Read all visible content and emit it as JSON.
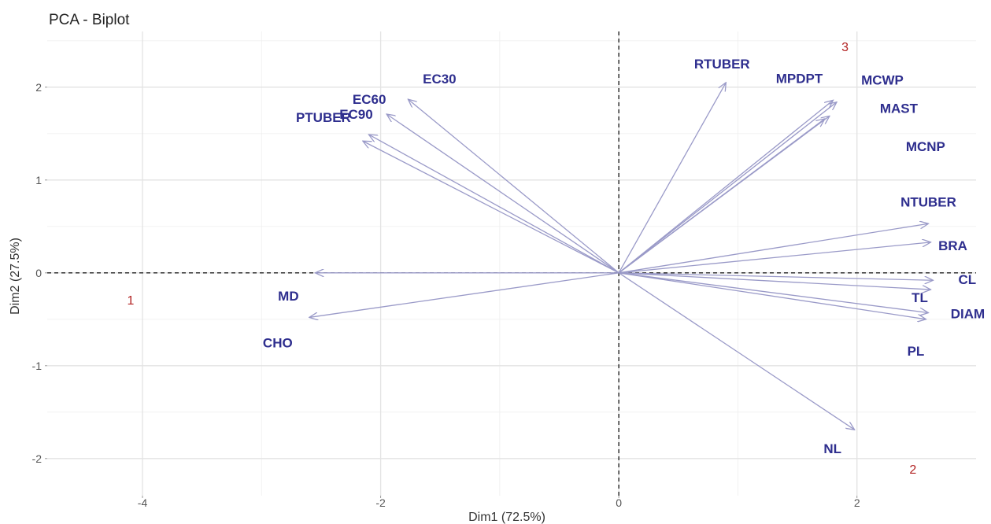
{
  "chart_data": {
    "type": "scatter",
    "subtype": "pca-biplot",
    "title": "PCA - Biplot",
    "xlabel": "Dim1 (72.5%)",
    "ylabel": "Dim2 (27.5%)",
    "xlim": [
      -4.8,
      3.0
    ],
    "ylim": [
      -2.4,
      2.6
    ],
    "x_ticks": [
      -4,
      -2,
      0,
      2
    ],
    "y_ticks": [
      -2,
      -1,
      0,
      1,
      2
    ],
    "grid": true,
    "colors": {
      "variables": "#2e2e8e",
      "arrows": "#9a9ac8",
      "individuals": "#b22222",
      "zero_line": "#222222"
    },
    "variables": [
      {
        "name": "EC30",
        "x": -1.77,
        "y": 1.87
      },
      {
        "name": "EC60",
        "x": -1.95,
        "y": 1.71
      },
      {
        "name": "EC90",
        "x": -2.1,
        "y": 1.49
      },
      {
        "name": "PTUBER",
        "x": -2.15,
        "y": 1.42
      },
      {
        "name": "RTUBER",
        "x": 0.9,
        "y": 2.05
      },
      {
        "name": "MPDPT",
        "x": 1.8,
        "y": 1.86
      },
      {
        "name": "MCWP",
        "x": 1.83,
        "y": 1.84
      },
      {
        "name": "MAST",
        "x": 1.77,
        "y": 1.69
      },
      {
        "name": "MCNP",
        "x": 1.73,
        "y": 1.66
      },
      {
        "name": "NTUBER",
        "x": 2.6,
        "y": 0.53
      },
      {
        "name": "BRA",
        "x": 2.62,
        "y": 0.33
      },
      {
        "name": "CL",
        "x": 2.64,
        "y": -0.08
      },
      {
        "name": "TL",
        "x": 2.62,
        "y": -0.18
      },
      {
        "name": "DIAM",
        "x": 2.6,
        "y": -0.43
      },
      {
        "name": "PL",
        "x": 2.58,
        "y": -0.5
      },
      {
        "name": "NL",
        "x": 1.98,
        "y": -1.69
      },
      {
        "name": "MD",
        "x": -2.55,
        "y": 0.0
      },
      {
        "name": "CHO",
        "x": -2.6,
        "y": -0.48
      }
    ],
    "individuals": [
      {
        "label": "1",
        "x": -4.1,
        "y": -0.3
      },
      {
        "label": "2",
        "x": 2.47,
        "y": -2.12
      },
      {
        "label": "3",
        "x": 1.9,
        "y": 2.43
      }
    ]
  }
}
